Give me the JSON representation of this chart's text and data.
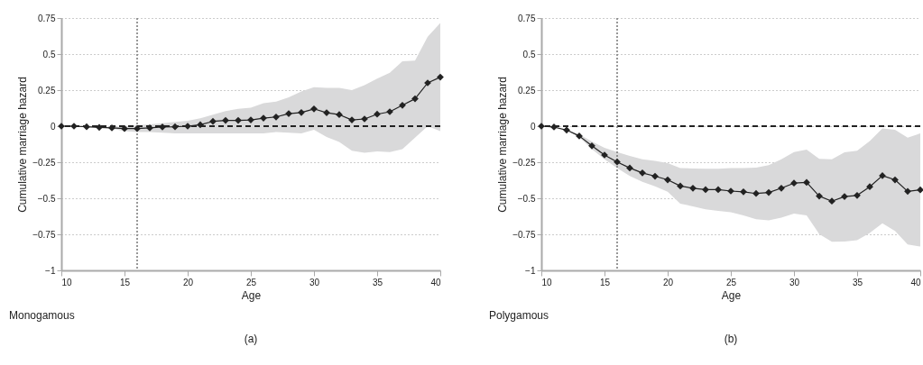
{
  "chart_data": [
    {
      "type": "line",
      "xlabel": "Age",
      "ylabel": "Cumulative marriage hazard",
      "annotations": [
        "Monogamous",
        "(a)"
      ],
      "x": [
        10,
        11,
        12,
        13,
        14,
        15,
        16,
        17,
        18,
        19,
        20,
        21,
        22,
        23,
        24,
        25,
        26,
        27,
        28,
        29,
        30,
        31,
        32,
        33,
        34,
        35,
        36,
        37,
        38,
        39,
        40
      ],
      "series": [
        {
          "color": "#222222",
          "values": [
            0,
            0,
            -0.004,
            -0.008,
            -0.012,
            -0.017,
            -0.017,
            -0.012,
            -0.006,
            -0.004,
            0,
            0.01,
            0.033,
            0.04,
            0.04,
            0.043,
            0.056,
            0.064,
            0.087,
            0.095,
            0.12,
            0.093,
            0.08,
            0.043,
            0.05,
            0.083,
            0.1,
            0.145,
            0.19,
            0.3,
            0.34
          ],
          "lower": [
            0,
            0,
            -0.004,
            -0.008,
            -0.017,
            -0.035,
            -0.04,
            -0.04,
            -0.045,
            -0.05,
            -0.05,
            -0.05,
            -0.05,
            -0.05,
            -0.05,
            -0.05,
            -0.05,
            -0.04,
            -0.045,
            -0.05,
            -0.025,
            -0.075,
            -0.11,
            -0.17,
            -0.185,
            -0.175,
            -0.18,
            -0.16,
            -0.08,
            0,
            -0.035
          ],
          "upper": [
            0,
            0,
            -0.004,
            -0.008,
            -0.008,
            0,
            0.006,
            0.012,
            0.02,
            0.03,
            0.037,
            0.054,
            0.08,
            0.105,
            0.12,
            0.128,
            0.16,
            0.17,
            0.2,
            0.24,
            0.27,
            0.265,
            0.265,
            0.25,
            0.285,
            0.33,
            0.37,
            0.45,
            0.455,
            0.62,
            0.715
          ]
        }
      ],
      "xlim": [
        10,
        40
      ],
      "xticks": [
        10,
        15,
        20,
        25,
        30,
        35,
        40
      ],
      "ylim": [
        -1,
        0.75
      ],
      "yticks": [
        -1,
        -0.75,
        -0.5,
        -0.25,
        0,
        0.25,
        0.5,
        0.75
      ],
      "ref_lines": [
        {
          "axis": "y",
          "value": 0,
          "color": "#222222",
          "line_style": "dashed"
        },
        {
          "axis": "x",
          "value": 16,
          "color": "#777777",
          "line_style": "dotted"
        }
      ],
      "grid": "y",
      "marker": "diamond",
      "line_style": "solid",
      "legend": false
    },
    {
      "type": "line",
      "xlabel": "Age",
      "ylabel": "Cumulative marriage hazard",
      "annotations": [
        "Polygamous",
        "(b)"
      ],
      "x": [
        10,
        11,
        12,
        13,
        14,
        15,
        16,
        17,
        18,
        19,
        20,
        21,
        22,
        23,
        24,
        25,
        26,
        27,
        28,
        29,
        30,
        31,
        32,
        33,
        34,
        35,
        36,
        37,
        38,
        39,
        40
      ],
      "series": [
        {
          "color": "#222222",
          "values": [
            0,
            -0.006,
            -0.027,
            -0.068,
            -0.136,
            -0.2,
            -0.248,
            -0.29,
            -0.324,
            -0.347,
            -0.372,
            -0.415,
            -0.43,
            -0.44,
            -0.44,
            -0.45,
            -0.455,
            -0.467,
            -0.46,
            -0.43,
            -0.395,
            -0.39,
            -0.485,
            -0.52,
            -0.488,
            -0.48,
            -0.42,
            -0.343,
            -0.372,
            -0.452,
            -0.442
          ],
          "lower": [
            0,
            -0.006,
            -0.027,
            -0.076,
            -0.16,
            -0.23,
            -0.29,
            -0.345,
            -0.386,
            -0.417,
            -0.455,
            -0.537,
            -0.556,
            -0.576,
            -0.587,
            -0.597,
            -0.618,
            -0.645,
            -0.653,
            -0.634,
            -0.607,
            -0.618,
            -0.748,
            -0.802,
            -0.8,
            -0.79,
            -0.74,
            -0.674,
            -0.727,
            -0.82,
            -0.835
          ],
          "upper": [
            0,
            -0.006,
            -0.027,
            -0.056,
            -0.107,
            -0.15,
            -0.18,
            -0.207,
            -0.23,
            -0.24,
            -0.256,
            -0.29,
            -0.293,
            -0.295,
            -0.295,
            -0.29,
            -0.29,
            -0.288,
            -0.27,
            -0.23,
            -0.18,
            -0.163,
            -0.227,
            -0.23,
            -0.182,
            -0.17,
            -0.103,
            -0.016,
            -0.025,
            -0.079,
            -0.05
          ]
        }
      ],
      "xlim": [
        10,
        40
      ],
      "xticks": [
        10,
        15,
        20,
        25,
        30,
        35,
        40
      ],
      "ylim": [
        -1,
        0.75
      ],
      "yticks": [
        -1,
        -0.75,
        -0.5,
        -0.25,
        0,
        0.25,
        0.5,
        0.75
      ],
      "ref_lines": [
        {
          "axis": "y",
          "value": 0,
          "color": "#222222",
          "line_style": "dashed"
        },
        {
          "axis": "x",
          "value": 16,
          "color": "#777777",
          "line_style": "dotted"
        }
      ],
      "grid": "y",
      "marker": "diamond",
      "line_style": "solid",
      "legend": false
    }
  ]
}
